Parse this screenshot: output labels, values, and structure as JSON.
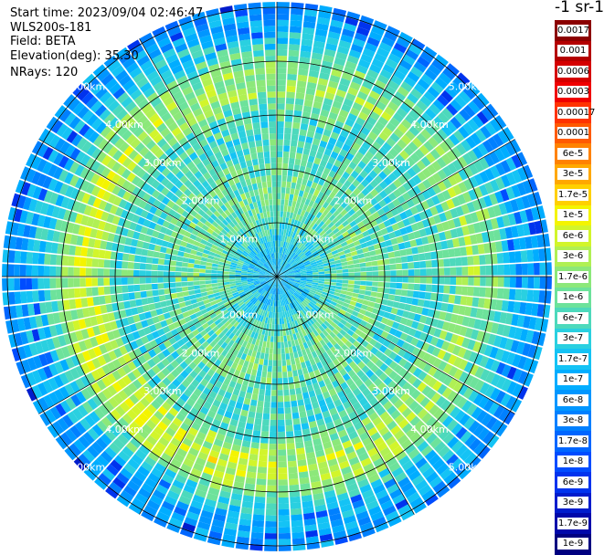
{
  "info": {
    "start_time": "Start time: 2023/09/04 02:46:47",
    "device": "WLS200s-181",
    "field": "Field: BETA",
    "elevation": "Elevation(deg): 35.30",
    "nrays": "NRays: 120"
  },
  "colorbar": {
    "title": "-1 sr-1",
    "entries": [
      {
        "label": "0.0017",
        "color": "#8b0000"
      },
      {
        "label": "0.001",
        "color": "#b40000"
      },
      {
        "label": "0.0006",
        "color": "#d50000"
      },
      {
        "label": "0.0003",
        "color": "#f00000"
      },
      {
        "label": "0.00017",
        "color": "#ff3300"
      },
      {
        "label": "0.0001",
        "color": "#ff5a00"
      },
      {
        "label": "6e-5",
        "color": "#ff8200"
      },
      {
        "label": "3e-5",
        "color": "#ffa800"
      },
      {
        "label": "1.7e-5",
        "color": "#ffd000"
      },
      {
        "label": "1e-5",
        "color": "#f4f400"
      },
      {
        "label": "6e-6",
        "color": "#d2f52b"
      },
      {
        "label": "3e-6",
        "color": "#b0f054"
      },
      {
        "label": "1.7e-6",
        "color": "#8ce87a"
      },
      {
        "label": "1e-6",
        "color": "#6de29b"
      },
      {
        "label": "6e-7",
        "color": "#4dd9bc"
      },
      {
        "label": "3e-7",
        "color": "#2ad0e0"
      },
      {
        "label": "1.7e-7",
        "color": "#14c3f5"
      },
      {
        "label": "1e-7",
        "color": "#00adff"
      },
      {
        "label": "6e-8",
        "color": "#0096ff"
      },
      {
        "label": "3e-8",
        "color": "#0080ff"
      },
      {
        "label": "1.7e-8",
        "color": "#0066ff"
      },
      {
        "label": "1e-8",
        "color": "#004cff"
      },
      {
        "label": "6e-9",
        "color": "#0033ee"
      },
      {
        "label": "3e-9",
        "color": "#001ccc"
      },
      {
        "label": "1.7e-9",
        "color": "#0008aa"
      },
      {
        "label": "1e-9",
        "color": "#000080"
      }
    ]
  },
  "chart_data": {
    "type": "heatmap",
    "projection": "polar-ppi",
    "field": "BETA",
    "elevation_deg": 35.3,
    "n_rays": 120,
    "range_rings_km": [
      1,
      2,
      3,
      4,
      5
    ],
    "ring_labels": [
      "1.00km",
      "2.00km",
      "3.00km",
      "4.00km",
      "5.00km"
    ],
    "ring_label_azimuths_deg": [
      45,
      135,
      225,
      315
    ],
    "spoke_azimuths_deg": [
      0,
      30,
      60,
      90,
      120,
      150,
      180,
      210,
      240,
      270,
      300,
      330
    ],
    "max_range_km": 5.1,
    "radial_profile": [
      {
        "range_km": 0.2,
        "value": 1.7e-07
      },
      {
        "range_km": 0.5,
        "value": 2e-07
      },
      {
        "range_km": 1.0,
        "value": 6e-07
      },
      {
        "range_km": 1.5,
        "value": 1e-06
      },
      {
        "range_km": 2.0,
        "value": 8e-07
      },
      {
        "range_km": 2.5,
        "value": 5e-07
      },
      {
        "range_km": 3.0,
        "value": 6e-07
      },
      {
        "range_km": 3.3,
        "value": 1.7e-06
      },
      {
        "range_km": 3.6,
        "value": 3e-06
      },
      {
        "range_km": 3.9,
        "value": 1.7e-06
      },
      {
        "range_km": 4.3,
        "value": 3e-07
      },
      {
        "range_km": 4.7,
        "value": 1e-07
      },
      {
        "range_km": 5.1,
        "value": 6e-08
      }
    ],
    "colorscale": "jet-log",
    "color_range": [
      1e-09,
      0.0017
    ]
  }
}
